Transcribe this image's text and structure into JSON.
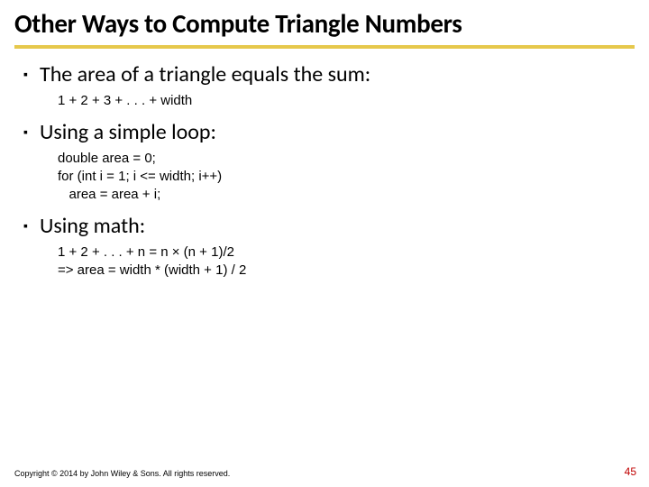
{
  "title": "Other Ways to Compute Triangle Numbers",
  "accent_color": "#e6c84c",
  "pagenum_color": "#c00000",
  "bullets": [
    {
      "text": "The area of a triangle equals the sum:",
      "sublines": [
        "1 + 2 + 3 + . . . + width"
      ]
    },
    {
      "text": "Using a simple loop:",
      "sublines": [
        "double area = 0;",
        "for (int i = 1; i <= width; i++)",
        "   area = area + i;"
      ]
    },
    {
      "text": "Using math:",
      "sublines": [
        "1 + 2 + . . . + n = n × (n + 1)/2",
        "=> area = width * (width + 1) / 2"
      ]
    }
  ],
  "footer": "Copyright © 2014 by John Wiley & Sons. All rights reserved.",
  "page_number": "45"
}
